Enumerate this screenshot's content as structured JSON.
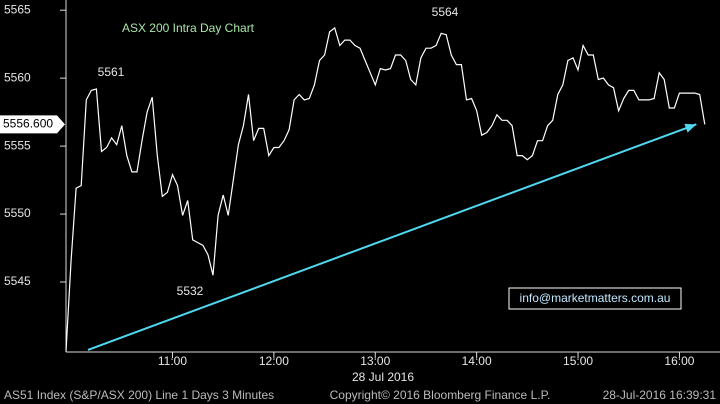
{
  "chart_data": {
    "type": "line",
    "title": "ASX 200 Intra Day Chart",
    "x_label": "28 Jul 2016",
    "xlim": [
      597,
      984
    ],
    "xticks": [
      {
        "value": 660,
        "label": "11:00"
      },
      {
        "value": 720,
        "label": "12:00"
      },
      {
        "value": 780,
        "label": "13:00"
      },
      {
        "value": 840,
        "label": "14:00"
      },
      {
        "value": 900,
        "label": "15:00"
      },
      {
        "value": 960,
        "label": "16:00"
      }
    ],
    "ylim": [
      5539.85,
      5565.75
    ],
    "yticks": [
      5545,
      5550,
      5555,
      5560,
      5565
    ],
    "x": [
      597,
      600,
      603,
      606,
      609,
      612,
      615,
      618,
      621,
      624,
      627,
      630,
      633,
      636,
      639,
      642,
      645,
      648,
      651,
      654,
      657,
      660,
      663,
      666,
      669,
      672,
      675,
      678,
      681,
      684,
      687,
      690,
      693,
      696,
      699,
      702,
      705,
      708,
      711,
      714,
      717,
      720,
      723,
      726,
      729,
      732,
      735,
      738,
      741,
      744,
      747,
      750,
      753,
      756,
      759,
      762,
      765,
      768,
      771,
      774,
      777,
      780,
      783,
      786,
      789,
      792,
      795,
      798,
      801,
      804,
      807,
      810,
      813,
      816,
      819,
      822,
      825,
      828,
      831,
      834,
      837,
      840,
      843,
      846,
      849,
      852,
      855,
      858,
      861,
      864,
      867,
      870,
      873,
      876,
      879,
      882,
      885,
      888,
      891,
      894,
      897,
      900,
      903,
      906,
      909,
      912,
      915,
      918,
      921,
      924,
      927,
      930,
      933,
      936,
      939,
      942,
      945,
      948,
      951,
      954,
      957,
      960,
      963,
      966,
      969,
      972,
      975
    ],
    "series": [
      {
        "name": "AS51 Index",
        "color": "#ffffff",
        "values": [
          5539.9,
          5546.6,
          5551.9,
          5552.1,
          5558.4,
          5559.1,
          5559.2,
          5554.6,
          5554.9,
          5555.6,
          5555.1,
          5556.5,
          5554.3,
          5553.1,
          5553.1,
          5555.4,
          5557.5,
          5558.6,
          5554.3,
          5551.3,
          5551.6,
          5552.9,
          5552.1,
          5549.9,
          5551.0,
          5548.1,
          5547.9,
          5547.7,
          5547.0,
          5545.5,
          5549.9,
          5551.4,
          5549.9,
          5552.5,
          5555.1,
          5556.5,
          5558.8,
          5555.4,
          5556.3,
          5556.3,
          5554.3,
          5554.9,
          5554.9,
          5555.4,
          5556.2,
          5558.4,
          5558.8,
          5558.4,
          5558.5,
          5559.5,
          5561.3,
          5561.7,
          5563.4,
          5563.7,
          5562.4,
          5562.8,
          5562.8,
          5562.4,
          5562.2,
          5561.3,
          5560.4,
          5559.5,
          5560.7,
          5560.6,
          5560.7,
          5561.7,
          5561.7,
          5561.3,
          5559.9,
          5559.5,
          5561.5,
          5562.2,
          5562.2,
          5562.4,
          5563.3,
          5563.2,
          5561.7,
          5561.0,
          5561.0,
          5558.4,
          5558.5,
          5557.6,
          5555.8,
          5556.0,
          5556.5,
          5557.3,
          5556.9,
          5556.9,
          5556.5,
          5554.3,
          5554.3,
          5554.0,
          5554.3,
          5555.4,
          5555.4,
          5556.5,
          5556.9,
          5558.8,
          5559.5,
          5561.3,
          5561.5,
          5560.6,
          5562.4,
          5561.7,
          5561.7,
          5559.9,
          5560.0,
          5559.5,
          5559.3,
          5557.6,
          5558.5,
          5559.1,
          5559.1,
          5558.4,
          5558.4,
          5558.4,
          5558.5,
          5560.4,
          5559.9,
          5557.8,
          5557.8,
          5558.9,
          5558.9,
          5558.9,
          5558.9,
          5558.8,
          5556.6
        ]
      }
    ],
    "trendline": {
      "color": "#4fd8f0",
      "x": [
        610,
        970
      ],
      "values": [
        5540,
        5556.6
      ]
    },
    "last_price": {
      "value": 5556.6,
      "label": "5556.600"
    },
    "annotations": [
      "5561",
      "5532",
      "5564"
    ],
    "contact": "info@marketmatters.com.au",
    "footer": [
      "AS51 Index (S&P/ASX 200) Line 1 Days 3 Minutes",
      "Copyright© 2016 Bloomberg Finance L.P.",
      "28-Jul-2016 16:39:31"
    ]
  }
}
